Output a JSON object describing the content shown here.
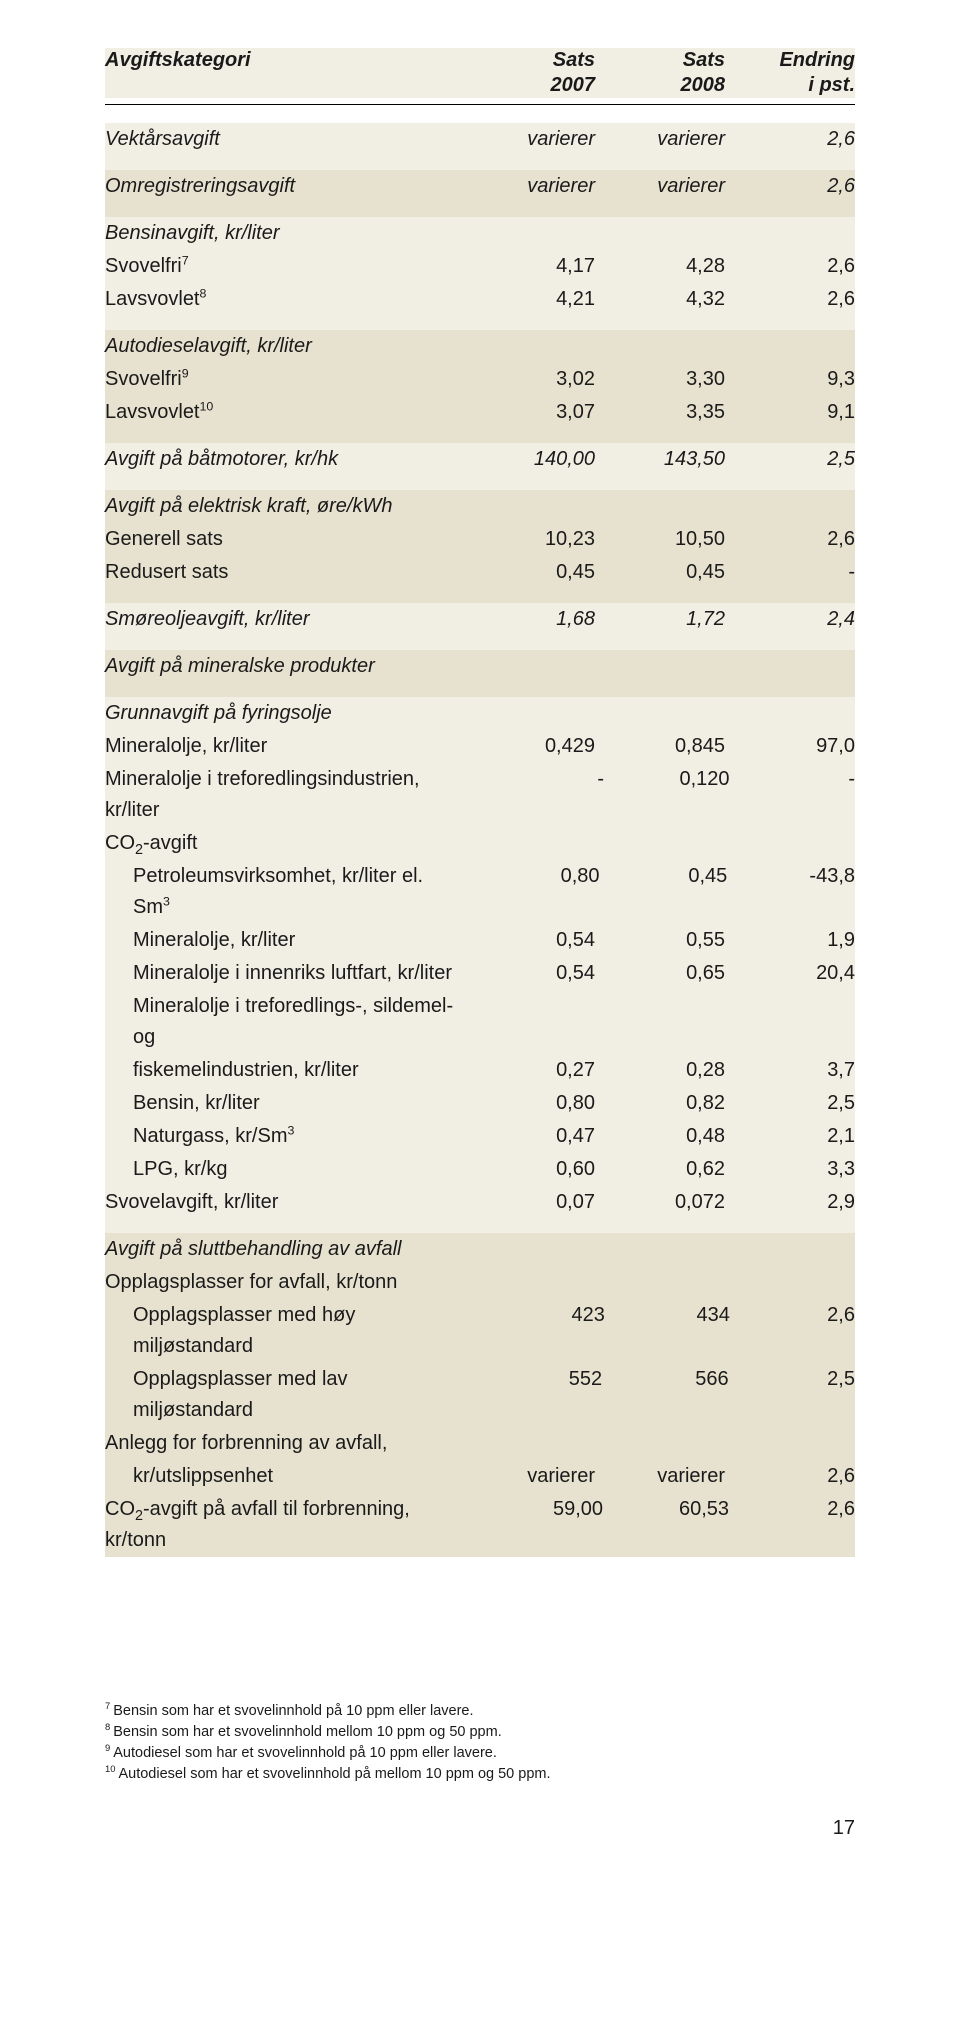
{
  "header": {
    "col_label": "Avgiftskategori",
    "col_a_l1": "Sats",
    "col_a_l2": "2007",
    "col_b_l1": "Sats",
    "col_b_l2": "2008",
    "col_c_l1": "Endring",
    "col_c_l2": "i pst."
  },
  "rows": [
    {
      "band": 0,
      "type": "row",
      "italic": true,
      "label": "Vektårsavgift",
      "a": "varierer",
      "b": "varierer",
      "c": "2,6"
    },
    {
      "band": 0,
      "type": "gap"
    },
    {
      "band": 1,
      "type": "row",
      "italic": true,
      "label": "Omregistreringsavgift",
      "a": "varierer",
      "b": "varierer",
      "c": "2,6"
    },
    {
      "band": 1,
      "type": "gap"
    },
    {
      "band": 0,
      "type": "head",
      "label": "Bensinavgift, kr/liter"
    },
    {
      "band": 0,
      "type": "row",
      "label_pre": "Svovelfri",
      "sup": "7",
      "a": "4,17",
      "b": "4,28",
      "c": "2,6"
    },
    {
      "band": 0,
      "type": "row",
      "label_pre": "Lavsvovlet",
      "sup": "8",
      "a": "4,21",
      "b": "4,32",
      "c": "2,6"
    },
    {
      "band": 0,
      "type": "gap"
    },
    {
      "band": 1,
      "type": "head",
      "label": "Autodieselavgift, kr/liter"
    },
    {
      "band": 1,
      "type": "row",
      "label_pre": "Svovelfri",
      "sup": "9",
      "a": "3,02",
      "b": "3,30",
      "c": "9,3"
    },
    {
      "band": 1,
      "type": "row",
      "label_pre": "Lavsvovlet",
      "sup": "10",
      "a": "3,07",
      "b": "3,35",
      "c": "9,1"
    },
    {
      "band": 1,
      "type": "gap"
    },
    {
      "band": 0,
      "type": "row",
      "italic": true,
      "label": "Avgift på båtmotorer, kr/hk",
      "a": "140,00",
      "b": "143,50",
      "c": "2,5"
    },
    {
      "band": 0,
      "type": "gap"
    },
    {
      "band": 1,
      "type": "head",
      "label": "Avgift på elektrisk kraft, øre/kWh"
    },
    {
      "band": 1,
      "type": "row",
      "label": "Generell sats",
      "a": "10,23",
      "b": "10,50",
      "c": "2,6"
    },
    {
      "band": 1,
      "type": "row",
      "label": "Redusert sats",
      "a": "0,45",
      "b": "0,45",
      "c": "-"
    },
    {
      "band": 1,
      "type": "gap"
    },
    {
      "band": 0,
      "type": "row",
      "italic": true,
      "label": "Smøreoljeavgift, kr/liter",
      "a": "1,68",
      "b": "1,72",
      "c": "2,4"
    },
    {
      "band": 0,
      "type": "gap"
    },
    {
      "band": 1,
      "type": "row",
      "italic": true,
      "label": "Avgift på mineralske produkter"
    },
    {
      "band": 1,
      "type": "gap"
    },
    {
      "band": 0,
      "type": "head",
      "label": "Grunnavgift på fyringsolje"
    },
    {
      "band": 0,
      "type": "row",
      "label": "Mineralolje, kr/liter",
      "a": "0,429",
      "b": "0,845",
      "c": "97,0"
    },
    {
      "band": 0,
      "type": "row",
      "label": "Mineralolje i treforedlingsindustrien, kr/liter",
      "a": "-",
      "b": "0,120",
      "c": "-"
    },
    {
      "band": 0,
      "type": "row",
      "label_pre": "CO",
      "sub": "2",
      "label_post": "-avgift"
    },
    {
      "band": 0,
      "type": "subrow",
      "label_pre": "Petroleumsvirksomhet, kr/liter el. Sm",
      "sup": "3",
      "a": "0,80",
      "b": "0,45",
      "c": "-43,8"
    },
    {
      "band": 0,
      "type": "subrow",
      "label": "Mineralolje, kr/liter",
      "a": "0,54",
      "b": "0,55",
      "c": "1,9"
    },
    {
      "band": 0,
      "type": "subrow",
      "label": "Mineralolje i innenriks luftfart, kr/liter",
      "a": "0,54",
      "b": "0,65",
      "c": "20,4"
    },
    {
      "band": 0,
      "type": "subrow",
      "label": "Mineralolje i treforedlings-, sildemel- og"
    },
    {
      "band": 0,
      "type": "subrow",
      "label": "fiskemelindustrien,  kr/liter",
      "a": "0,27",
      "b": "0,28",
      "c": "3,7"
    },
    {
      "band": 0,
      "type": "subrow",
      "label": "Bensin, kr/liter",
      "a": "0,80",
      "b": "0,82",
      "c": "2,5"
    },
    {
      "band": 0,
      "type": "subrow",
      "label_pre": "Naturgass, kr/Sm",
      "sup": "3",
      "a": "0,47",
      "b": "0,48",
      "c": "2,1"
    },
    {
      "band": 0,
      "type": "subrow",
      "label": "LPG, kr/kg",
      "a": "0,60",
      "b": "0,62",
      "c": "3,3"
    },
    {
      "band": 0,
      "type": "row",
      "label": "Svovelavgift, kr/liter",
      "a": "0,07",
      "b": "0,072",
      "c": "2,9"
    },
    {
      "band": 0,
      "type": "gap"
    },
    {
      "band": 1,
      "type": "head",
      "label": "Avgift på sluttbehandling av avfall"
    },
    {
      "band": 1,
      "type": "row",
      "label": "Opplagsplasser for avfall, kr/tonn"
    },
    {
      "band": 1,
      "type": "subrow",
      "label": "Opplagsplasser med høy miljøstandard",
      "a": "423",
      "b": "434",
      "c": "2,6"
    },
    {
      "band": 1,
      "type": "subrow",
      "label": "Opplagsplasser med lav miljøstandard",
      "a": "552",
      "b": "566",
      "c": "2,5"
    },
    {
      "band": 1,
      "type": "row",
      "label": "Anlegg for forbrenning av avfall,"
    },
    {
      "band": 1,
      "type": "subrow",
      "label": "kr/utslippsenhet",
      "a": "varierer",
      "b": "varierer",
      "c": "2,6"
    },
    {
      "band": 1,
      "type": "row",
      "label_pre": "CO",
      "sub": "2",
      "label_post": "-avgift på avfall til forbrenning, kr/tonn",
      "a": "59,00",
      "b": "60,53",
      "c": "2,6"
    }
  ],
  "footnotes": [
    {
      "n": "7",
      "text": "Bensin som har et svovelinnhold på 10 ppm eller lavere."
    },
    {
      "n": "8",
      "text": "Bensin som har et svovelinnhold mellom 10 ppm og 50 ppm."
    },
    {
      "n": "9",
      "text": "Autodiesel som har et svovelinnhold på 10 ppm eller lavere."
    },
    {
      "n": "10",
      "text": "Autodiesel som har et svovelinnhold på mellom 10 ppm og 50 ppm."
    }
  ],
  "page_number": "17"
}
